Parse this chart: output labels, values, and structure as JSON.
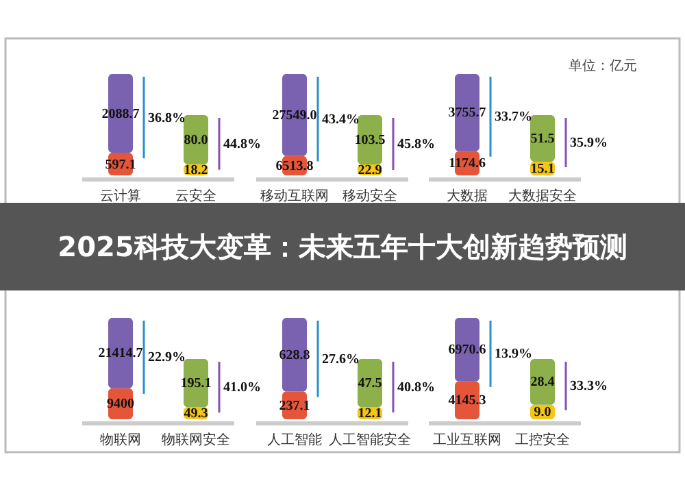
{
  "chart_data": {
    "type": "other",
    "title": "2025科技大变革：未来五年十大创新趋势预测",
    "annotations": [
      "单位：亿元",
      {
        "text": "36.8%",
        "x": "云计算"
      },
      {
        "text": "44.8%",
        "x": "云安全"
      },
      {
        "text": "43.4%",
        "x": "移动互联网"
      },
      {
        "text": "45.8%",
        "x": "移动安全"
      },
      {
        "text": "33.7%",
        "x": "大数据"
      },
      {
        "text": "35.9%",
        "x": "大数据安全"
      },
      {
        "text": "22.9%",
        "x": "物联网"
      },
      {
        "text": "41.0%",
        "x": "物联网安全"
      },
      {
        "text": "27.6%",
        "x": "人工智能"
      },
      {
        "text": "40.8%",
        "x": "人工智能安全"
      },
      {
        "text": "13.9%",
        "x": "工业互联网"
      },
      {
        "text": "33.3%",
        "x": "工控安全"
      }
    ],
    "categories": [
      "云计算",
      "云安全",
      "移动互联网",
      "移动安全",
      "大数据",
      "大数据安全",
      "物联网",
      "物联网安全",
      "人工智能",
      "人工智能安全",
      "工业互联网",
      "工控安全"
    ],
    "series": [
      {
        "colors": [
          "#e4553a",
          "#f5c518",
          "#e4553a",
          "#f5c518",
          "#e4553a",
          "#f5c518",
          "#e4553a",
          "#f5c518",
          "#e4553a",
          "#f5c518",
          "#e4553a",
          "#f5c518"
        ],
        "values": [
          597.1,
          18.2,
          6513.8,
          22.9,
          1174.6,
          15.1,
          9400,
          49.3,
          237.1,
          12.1,
          4145.3,
          9.0
        ],
        "value_labels": [
          "597.1",
          "18.2",
          "6513.8",
          "22.9",
          "1174.6",
          "15.1",
          "9400",
          "49.3",
          "237.1",
          "12.1",
          "4145.3",
          "9.0"
        ]
      },
      {
        "colors": [
          "#7b62b0",
          "#8db04a",
          "#7b62b0",
          "#8db04a",
          "#7b62b0",
          "#8db04a",
          "#7b62b0",
          "#8db04a",
          "#7b62b0",
          "#8db04a",
          "#7b62b0",
          "#8db04a"
        ],
        "values": [
          2088.7,
          80.0,
          27549.0,
          103.5,
          3755.7,
          51.5,
          21414.7,
          195.1,
          628.8,
          47.5,
          6970.6,
          28.4
        ],
        "value_labels": [
          "2088.7",
          "80.0",
          "27549.0",
          "103.5",
          "3755.7",
          "51.5",
          "21414.7",
          "195.1",
          "628.8",
          "47.5",
          "6970.6",
          "28.4"
        ]
      }
    ]
  }
}
